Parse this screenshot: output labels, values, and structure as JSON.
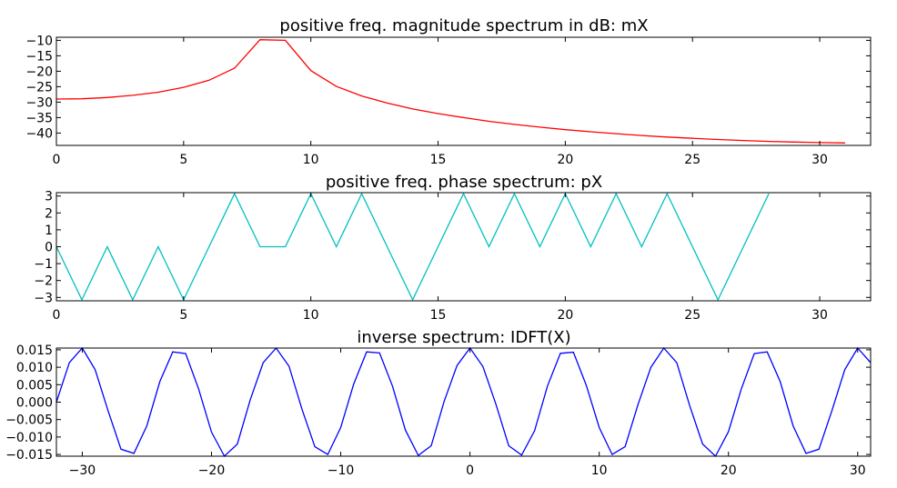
{
  "chart_data": [
    {
      "type": "line",
      "title": "positive freq. magnitude spectrum in dB: mX",
      "xlabel": "",
      "ylabel": "",
      "xlim": [
        0,
        32
      ],
      "ylim": [
        -44,
        -9
      ],
      "xticks": [
        0,
        5,
        10,
        15,
        20,
        25,
        30
      ],
      "xtick_labels": [
        "0",
        "5",
        "10",
        "15",
        "20",
        "25",
        "30"
      ],
      "yticks": [
        -10,
        -15,
        -20,
        -25,
        -30,
        -35,
        -40
      ],
      "ytick_labels": [
        "−10",
        "−15",
        "−20",
        "−25",
        "−30",
        "−35",
        "−40"
      ],
      "color": "#ff0000",
      "grid": false,
      "x": [
        0,
        1,
        2,
        3,
        4,
        5,
        6,
        7,
        8,
        9,
        10,
        11,
        12,
        13,
        14,
        15,
        16,
        17,
        18,
        19,
        20,
        21,
        22,
        23,
        24,
        25,
        26,
        27,
        28,
        29,
        30,
        31
      ],
      "y": [
        -29.0,
        -28.9,
        -28.5,
        -27.8,
        -26.8,
        -25.2,
        -22.9,
        -19.0,
        -9.8,
        -10.0,
        -19.8,
        -24.9,
        -28.0,
        -30.3,
        -32.2,
        -33.7,
        -35.0,
        -36.2,
        -37.2,
        -38.1,
        -38.9,
        -39.6,
        -40.2,
        -40.8,
        -41.3,
        -41.7,
        -42.1,
        -42.4,
        -42.7,
        -42.9,
        -43.1,
        -43.2
      ]
    },
    {
      "type": "line",
      "title": "positive freq. phase spectrum: pX",
      "xlabel": "",
      "ylabel": "",
      "xlim": [
        0,
        32
      ],
      "ylim": [
        -3.2,
        3.2
      ],
      "xticks": [
        0,
        5,
        10,
        15,
        20,
        25,
        30
      ],
      "xtick_labels": [
        "0",
        "5",
        "10",
        "15",
        "20",
        "25",
        "30"
      ],
      "yticks": [
        3,
        2,
        1,
        0,
        -1,
        -2,
        -3
      ],
      "ytick_labels": [
        "3",
        "2",
        "1",
        "0",
        "−1",
        "−2",
        "−3"
      ],
      "color": "#00bfbf",
      "grid": false,
      "x": [
        0,
        1,
        2,
        3,
        4,
        5,
        6,
        7,
        8,
        9,
        10,
        11,
        12,
        13,
        14,
        15,
        16,
        17,
        18,
        19,
        20,
        21,
        22,
        23,
        24,
        25,
        26,
        27,
        28
      ],
      "y": [
        0,
        -3.14,
        0,
        -3.14,
        0,
        -3.14,
        0,
        3.14,
        0,
        0,
        3.14,
        0,
        3.14,
        0,
        -3.14,
        0,
        3.14,
        0,
        3.14,
        0,
        3.14,
        0,
        3.14,
        0,
        3.14,
        0,
        -3.14,
        0,
        3.14
      ]
    },
    {
      "type": "line",
      "title": "inverse spectrum: IDFT(X)",
      "xlabel": "",
      "ylabel": "",
      "xlim": [
        -32,
        31
      ],
      "ylim": [
        -0.0155,
        0.0155
      ],
      "xticks": [
        -30,
        -20,
        -10,
        0,
        10,
        20,
        30
      ],
      "xtick_labels": [
        "−30",
        "−20",
        "−10",
        "0",
        "10",
        "20",
        "30"
      ],
      "yticks": [
        0.015,
        0.01,
        0.005,
        0.0,
        -0.005,
        -0.01,
        -0.015
      ],
      "ytick_labels": [
        "0.015",
        "0.010",
        "0.005",
        "0.000",
        "−0.005",
        "−0.010",
        "−0.015"
      ],
      "color": "#0000ff",
      "grid": false,
      "x": [
        -32,
        -31,
        -30,
        -29,
        -28,
        -27,
        -26,
        -25,
        -24,
        -23,
        -22,
        -21,
        -20,
        -19,
        -18,
        -17,
        -16,
        -15,
        -14,
        -13,
        -12,
        -11,
        -10,
        -9,
        -8,
        -7,
        -6,
        -5,
        -4,
        -3,
        -2,
        -1,
        0,
        1,
        2,
        3,
        4,
        5,
        6,
        7,
        8,
        9,
        10,
        11,
        12,
        13,
        14,
        15,
        16,
        17,
        18,
        19,
        20,
        21,
        22,
        23,
        24,
        25,
        26,
        27,
        28,
        29,
        30,
        31
      ],
      "y": [
        0.0,
        0.0113,
        0.0155,
        0.0093,
        -0.0025,
        -0.0135,
        -0.0147,
        -0.0068,
        0.0059,
        0.0144,
        0.0139,
        0.0038,
        -0.0086,
        -0.0155,
        -0.012,
        0.0007,
        0.0113,
        0.0155,
        0.0103,
        -0.002,
        -0.0128,
        -0.015,
        -0.0073,
        0.0051,
        0.0144,
        0.0141,
        0.0046,
        -0.008,
        -0.0153,
        -0.0125,
        0.0002,
        0.0105,
        0.0155,
        0.0102,
        -0.0005,
        -0.0125,
        -0.0152,
        -0.0082,
        0.0046,
        0.014,
        0.0143,
        0.0048,
        -0.0073,
        -0.015,
        -0.0128,
        -0.0007,
        0.01,
        0.0155,
        0.0113,
        -0.001,
        -0.012,
        -0.0155,
        -0.0085,
        0.0038,
        0.0139,
        0.0144,
        0.0059,
        -0.0068,
        -0.0147,
        -0.0135,
        -0.0025,
        0.0093,
        0.0155,
        0.0113
      ]
    }
  ]
}
